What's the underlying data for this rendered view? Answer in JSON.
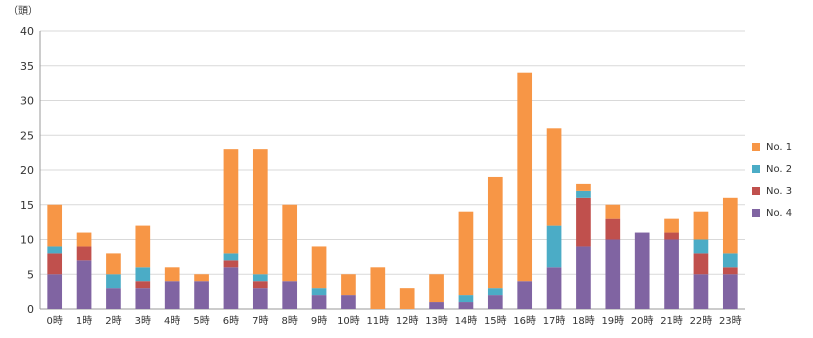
{
  "chart_data": {
    "type": "bar",
    "stacked": true,
    "unit_label": "（頭）",
    "categories": [
      "0時",
      "1時",
      "2時",
      "3時",
      "4時",
      "5時",
      "6時",
      "7時",
      "8時",
      "9時",
      "10時",
      "11時",
      "12時",
      "13時",
      "14時",
      "15時",
      "16時",
      "17時",
      "18時",
      "19時",
      "20時",
      "21時",
      "22時",
      "23時"
    ],
    "series": [
      {
        "name": "No. 4",
        "color": "#8064a2",
        "values": [
          5,
          7,
          3,
          3,
          4,
          4,
          6,
          3,
          4,
          2,
          2,
          0,
          0,
          1,
          1,
          2,
          4,
          6,
          9,
          10,
          11,
          10,
          5,
          5
        ]
      },
      {
        "name": "No. 3",
        "color": "#c0504d",
        "values": [
          3,
          2,
          0,
          1,
          0,
          0,
          1,
          1,
          0,
          0,
          0,
          0,
          0,
          0,
          0,
          0,
          0,
          0,
          7,
          3,
          0,
          1,
          3,
          1
        ]
      },
      {
        "name": "No. 2",
        "color": "#4bacc6",
        "values": [
          1,
          0,
          2,
          2,
          0,
          0,
          1,
          1,
          0,
          1,
          0,
          0,
          0,
          0,
          1,
          1,
          0,
          6,
          1,
          0,
          0,
          0,
          2,
          2
        ]
      },
      {
        "name": "No. 1",
        "color": "#f79646",
        "values": [
          6,
          2,
          3,
          6,
          2,
          1,
          15,
          18,
          11,
          6,
          3,
          6,
          3,
          4,
          12,
          16,
          30,
          14,
          1,
          2,
          0,
          2,
          4,
          8
        ]
      }
    ],
    "ylim": [
      0,
      40
    ],
    "yticks": [
      0,
      5,
      10,
      15,
      20,
      25,
      30,
      35,
      40
    ],
    "grid": true,
    "legend_position": "right",
    "legend_order": [
      "No. 1",
      "No. 2",
      "No. 3",
      "No. 4"
    ]
  }
}
